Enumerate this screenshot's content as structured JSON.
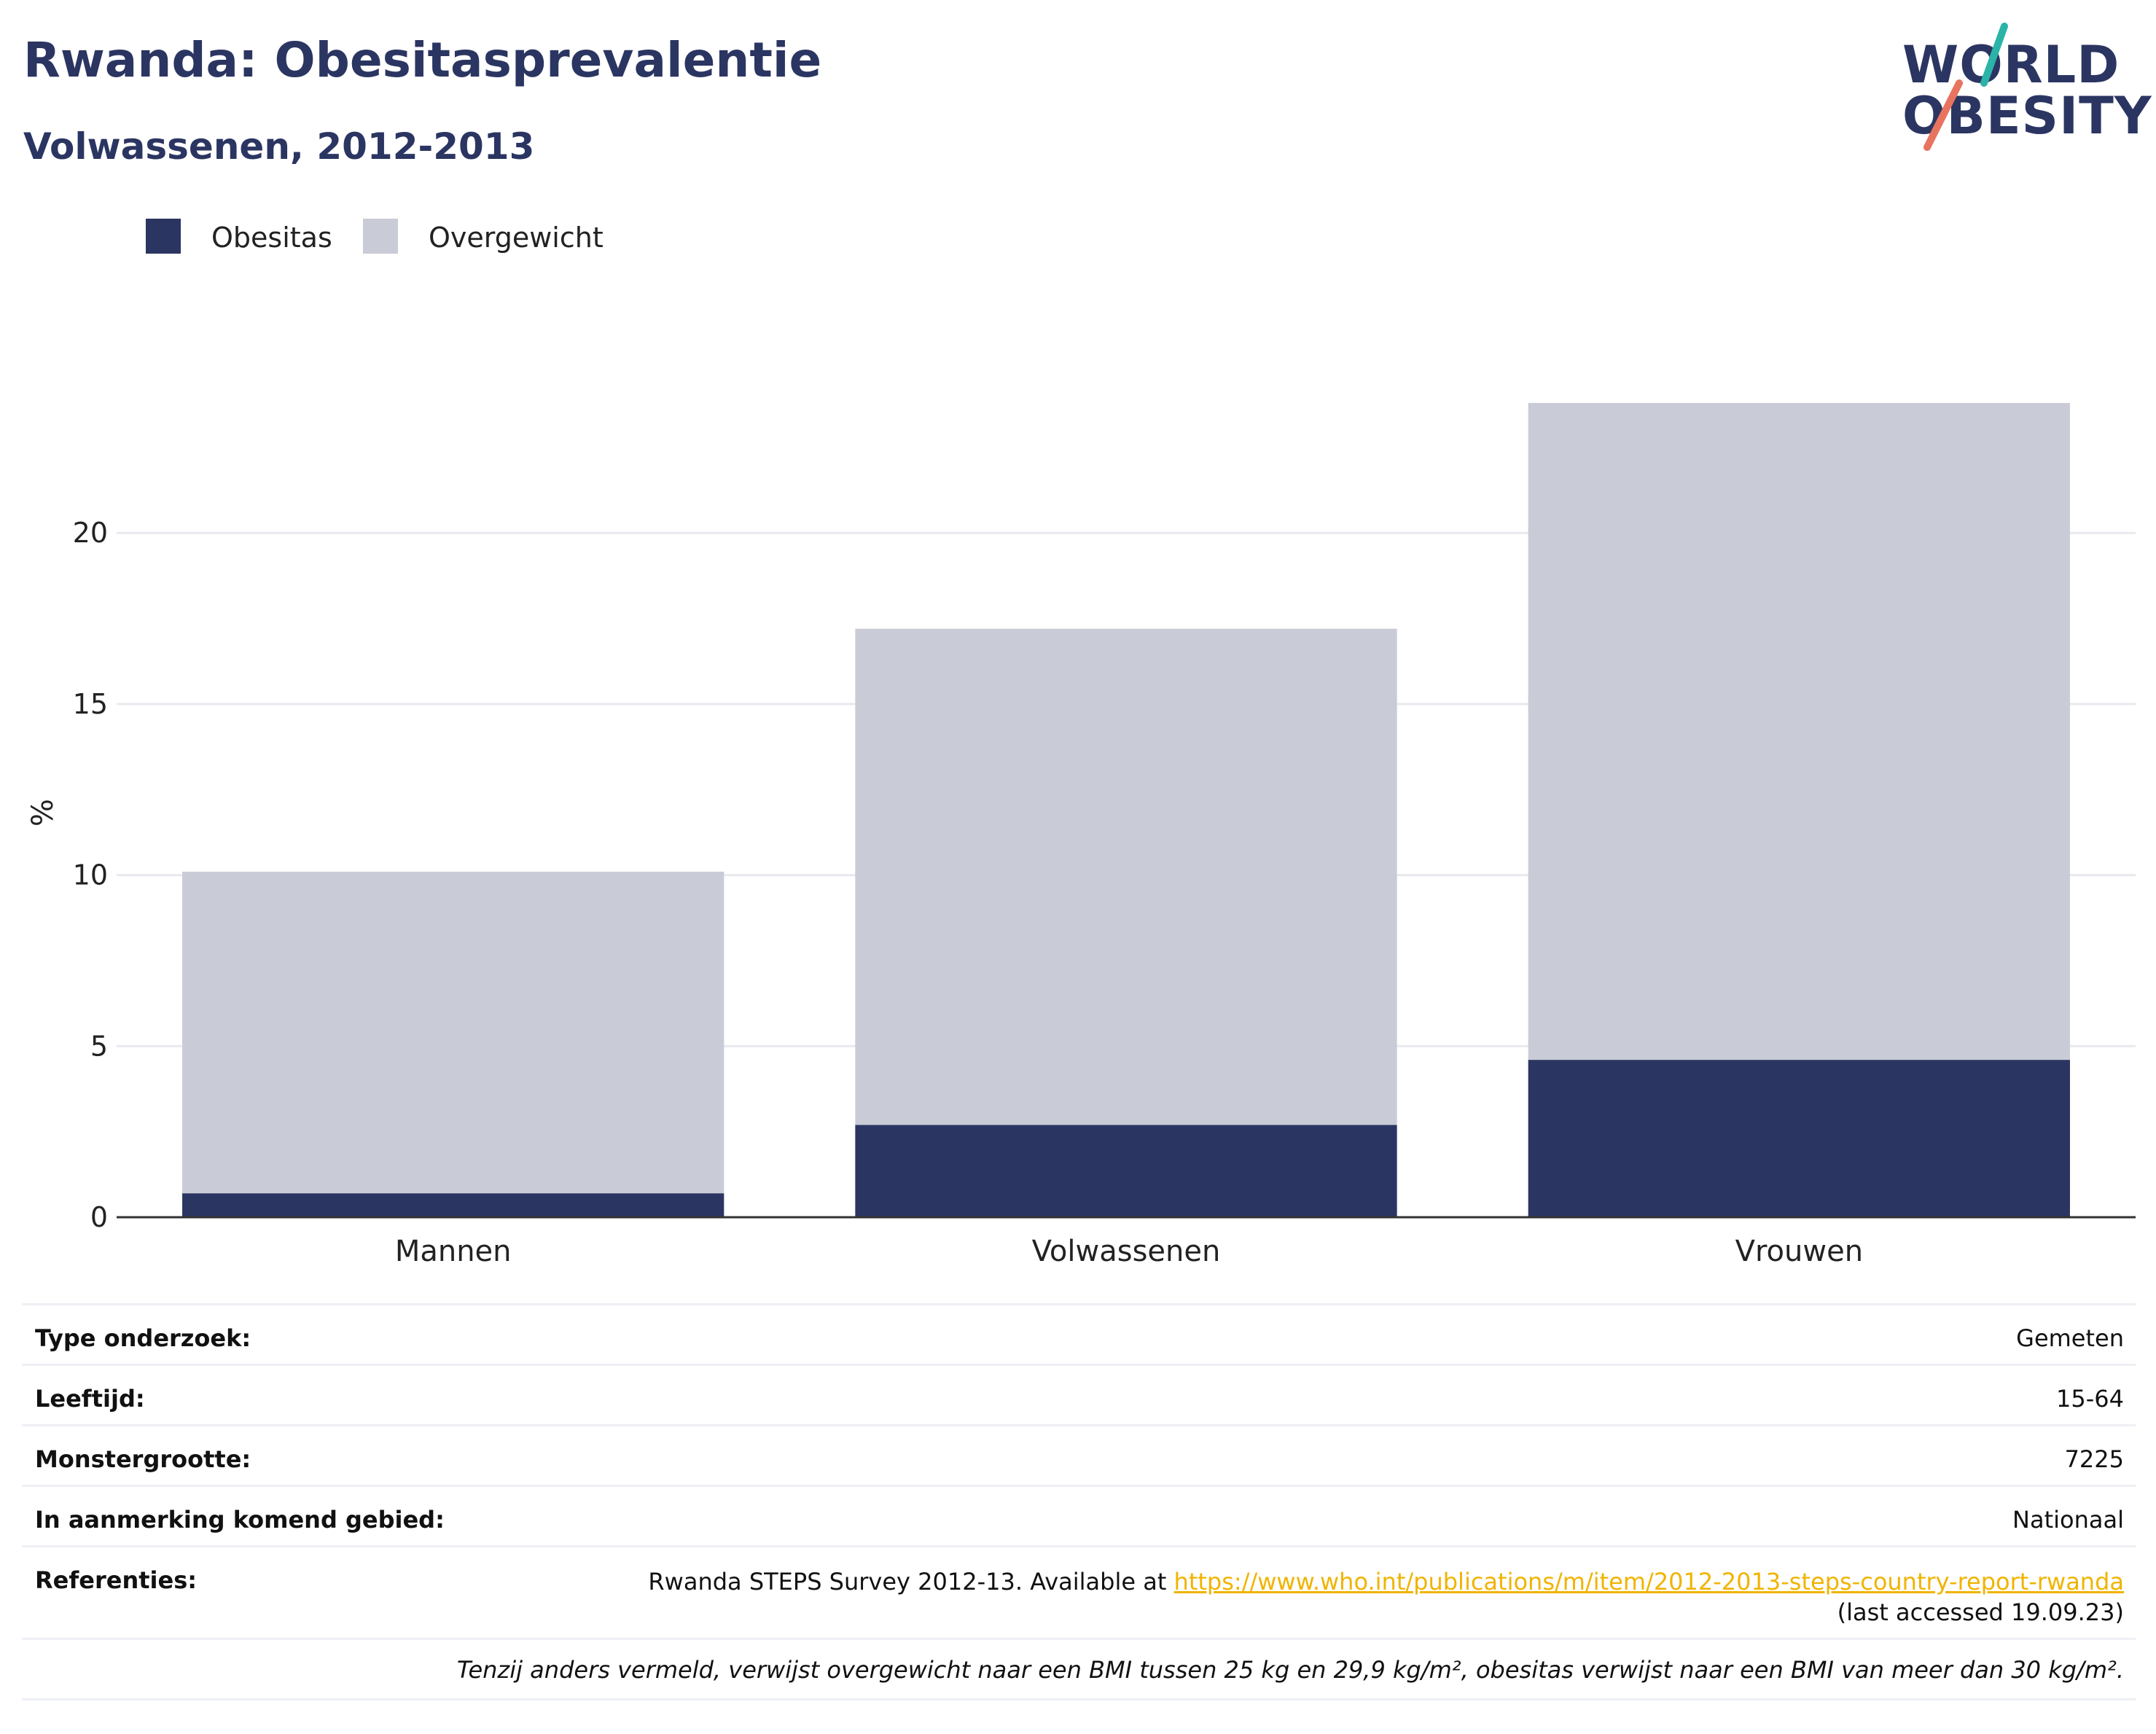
{
  "header": {
    "title": "Rwanda: Obesitasprevalentie",
    "subtitle": "Volwassenen, 2012-2013"
  },
  "logo": {
    "line1": "WORLD",
    "line2": "OBESITY"
  },
  "legend": {
    "obesity": "Obesitas",
    "overweight": "Overgewicht"
  },
  "colors": {
    "obesity": "#2b3562",
    "overweight": "#c9cbd6",
    "accent_teal": "#2bb3a8",
    "accent_coral": "#e8735e",
    "link": "#f0b400"
  },
  "chart_data": {
    "type": "bar",
    "stacked": true,
    "categories": [
      "Mannen",
      "Volwassenen",
      "Vrouwen"
    ],
    "series": [
      {
        "name": "Obesitas",
        "values": [
          0.7,
          2.7,
          4.6
        ]
      },
      {
        "name": "Overgewicht",
        "values": [
          9.4,
          14.5,
          19.2
        ]
      }
    ],
    "ylabel": "%",
    "yticks": [
      0,
      5,
      10,
      15,
      20
    ],
    "ylim": [
      0,
      24.5
    ],
    "grid": true,
    "legend_position": "top-left"
  },
  "info": {
    "rows": [
      {
        "label": "Type onderzoek:",
        "value": "Gemeten"
      },
      {
        "label": "Leeftijd:",
        "value": "15-64"
      },
      {
        "label": "Monstergrootte:",
        "value": "7225"
      },
      {
        "label": "In aanmerking komend gebied:",
        "value": "Nationaal"
      }
    ],
    "references": {
      "label": "Referenties:",
      "prefix": "Rwanda STEPS Survey 2012-13. Available at ",
      "link": "https://www.who.int/publications/m/item/2012-2013-steps-country-report-rwanda",
      "suffix": " (last accessed 19.09.23)"
    },
    "note": "Tenzij anders vermeld, verwijst overgewicht naar een BMI tussen 25 kg en 29,9 kg/m², obesitas verwijst naar een BMI van meer dan 30 kg/m²."
  }
}
